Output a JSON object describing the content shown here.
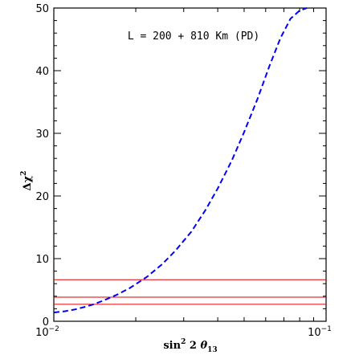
{
  "chart_data": {
    "type": "line",
    "title": "",
    "annotation": "L = 200 + 810 Km (PD)",
    "xlabel": "sin² 2 θ₁₃",
    "ylabel": "Δχ²",
    "xscale": "log",
    "xlim": [
      0.01,
      0.1
    ],
    "ylim": [
      0,
      50
    ],
    "x_tick_labels": [
      {
        "value": 0.01,
        "base": "10",
        "exp": "−2"
      },
      {
        "value": 0.1,
        "base": "10",
        "exp": "−1"
      }
    ],
    "y_ticks": [
      0,
      10,
      20,
      30,
      40,
      50
    ],
    "grid": false,
    "series": [
      {
        "style": "dashed",
        "color": "#0000ff",
        "x": [
          0.01,
          0.011,
          0.012,
          0.013,
          0.014,
          0.015,
          0.017,
          0.019,
          0.022,
          0.025,
          0.028,
          0.032,
          0.036,
          0.04,
          0.045,
          0.05,
          0.056,
          0.062,
          0.068,
          0.074,
          0.08,
          0.085
        ],
        "y": [
          1.4,
          1.6,
          1.9,
          2.3,
          2.7,
          3.2,
          4.2,
          5.3,
          7.1,
          9.1,
          11.3,
          14.3,
          17.7,
          21.2,
          25.6,
          30.2,
          35.5,
          40.8,
          45.2,
          48.3,
          49.6,
          50.0
        ]
      }
    ],
    "hlines": [
      {
        "y": 2.71,
        "color": "#e00000"
      },
      {
        "y": 3.84,
        "color": "#e00000"
      },
      {
        "y": 6.63,
        "color": "#e00000"
      }
    ]
  }
}
